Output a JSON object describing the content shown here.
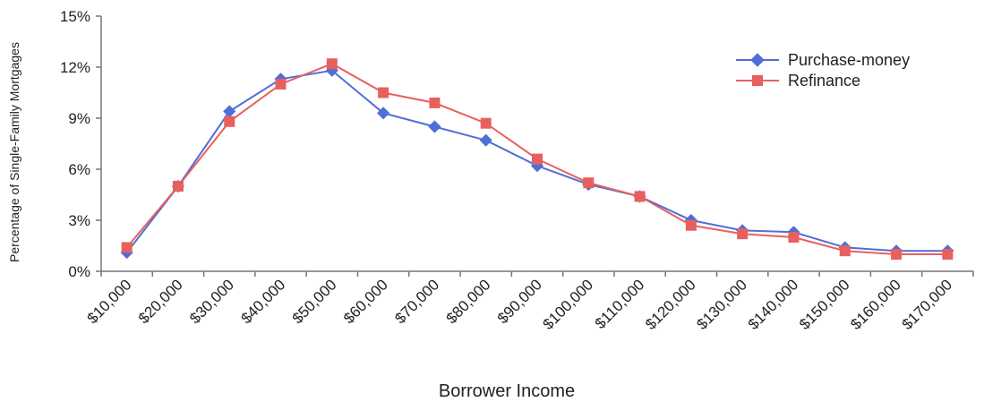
{
  "chart_data": {
    "type": "line",
    "title": "",
    "xlabel": "Borrower Income",
    "ylabel": "Percentage of Single-Family Mortgages",
    "categories": [
      "$10,000",
      "$20,000",
      "$30,000",
      "$40,000",
      "$50,000",
      "$60,000",
      "$70,000",
      "$80,000",
      "$90,000",
      "$100,000",
      "$110,000",
      "$120,000",
      "$130,000",
      "$140,000",
      "$150,000",
      "$160,000",
      "$170,000"
    ],
    "ylim": [
      0,
      15
    ],
    "yticks": [
      "0%",
      "3%",
      "6%",
      "9%",
      "12%",
      "15%"
    ],
    "grid": false,
    "legend_position": "top-right",
    "series": [
      {
        "name": "Purchase-money",
        "color": "#4f6fd6",
        "marker": "diamond",
        "values": [
          1.1,
          5.0,
          9.4,
          11.3,
          11.8,
          9.3,
          8.5,
          7.7,
          6.2,
          5.1,
          4.4,
          3.0,
          2.4,
          2.3,
          1.4,
          1.2,
          1.2
        ]
      },
      {
        "name": "Refinance",
        "color": "#e8605e",
        "marker": "square",
        "values": [
          1.4,
          5.0,
          8.8,
          11.0,
          12.2,
          10.5,
          9.9,
          8.7,
          6.6,
          5.2,
          4.4,
          2.7,
          2.2,
          2.0,
          1.2,
          1.0,
          1.0
        ]
      }
    ]
  }
}
